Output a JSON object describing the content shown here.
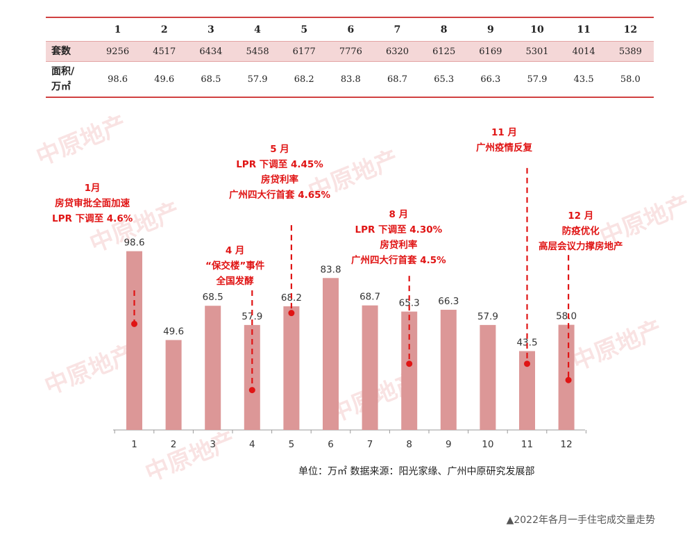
{
  "table": {
    "months": [
      "1",
      "2",
      "3",
      "4",
      "5",
      "6",
      "7",
      "8",
      "9",
      "10",
      "11",
      "12"
    ],
    "units_label": "套数",
    "units": [
      "9256",
      "4517",
      "6434",
      "5458",
      "6177",
      "7776",
      "6320",
      "6125",
      "6169",
      "5301",
      "4014",
      "5389"
    ],
    "area_label_line1": "面积/",
    "area_label_line2": "万㎡",
    "area": [
      "98.6",
      "49.6",
      "68.5",
      "57.9",
      "68.2",
      "83.8",
      "68.7",
      "65.3",
      "66.3",
      "57.9",
      "43.5",
      "58.0"
    ]
  },
  "chart_data": {
    "type": "bar",
    "categories": [
      "1",
      "2",
      "3",
      "4",
      "5",
      "6",
      "7",
      "8",
      "9",
      "10",
      "11",
      "12"
    ],
    "values": [
      98.6,
      49.6,
      68.5,
      57.9,
      68.2,
      83.8,
      68.7,
      65.3,
      66.3,
      57.9,
      43.5,
      58.0
    ],
    "value_labels": [
      "98.6",
      "49.6",
      "68.5",
      "57.9",
      "68.2",
      "83.8",
      "68.7",
      "65.3",
      "66.3",
      "57.9",
      "43.5",
      "58.0"
    ],
    "bar_color": "#dc9797",
    "annotation_color": "#e01414",
    "grid": false,
    "annotations": [
      {
        "month": "1",
        "lines": [
          "1月",
          "房贷审批全面加速",
          "LPR 下调至 4.6%"
        ]
      },
      {
        "month": "4",
        "lines": [
          "4 月",
          "“保交楼”事件",
          "全国发酵"
        ]
      },
      {
        "month": "5",
        "lines": [
          "5 月",
          "LPR 下调至 4.45%",
          "房贷利率",
          "广州四大行首套 4.65%"
        ]
      },
      {
        "month": "8",
        "lines": [
          "8 月",
          "LPR 下调至 4.30%",
          "房贷利率",
          "广州四大行首套 4.5%"
        ]
      },
      {
        "month": "11",
        "lines": [
          "11 月",
          "广州疫情反复"
        ]
      },
      {
        "month": "12",
        "lines": [
          "12 月",
          "防疫优化",
          "高层会议力撑房地产"
        ]
      }
    ]
  },
  "footnote": "单位：万㎡   数据来源：阳光家缘、广州中原研究发展部",
  "caption": "▲2022年各月一手住宅成交量走势",
  "watermark": "中原地产"
}
